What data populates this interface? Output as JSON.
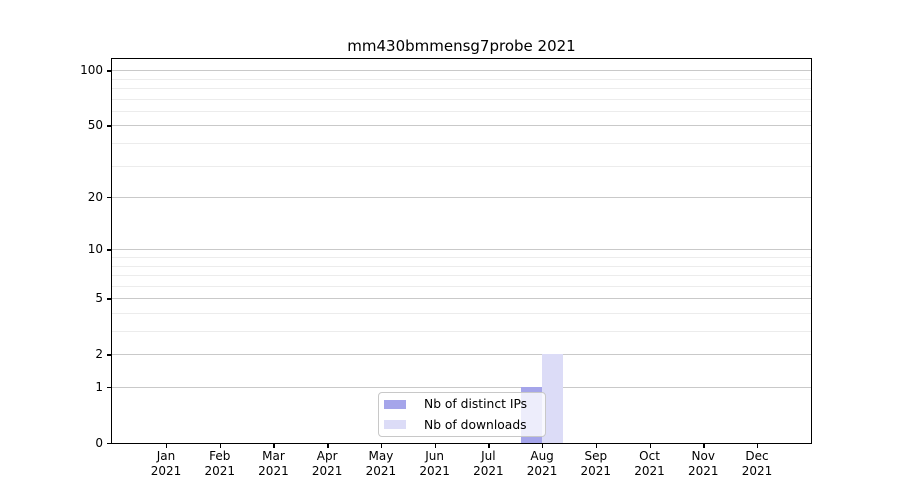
{
  "chart_data": {
    "type": "bar",
    "title": "mm430bmmensg7probe 2021",
    "categories": [
      "Jan 2021",
      "Feb 2021",
      "Mar 2021",
      "Apr 2021",
      "May 2021",
      "Jun 2021",
      "Jul 2021",
      "Aug 2021",
      "Sep 2021",
      "Oct 2021",
      "Nov 2021",
      "Dec 2021"
    ],
    "x_tick_month_labels": [
      "Jan",
      "Feb",
      "Mar",
      "Apr",
      "May",
      "Jun",
      "Jul",
      "Aug",
      "Sep",
      "Oct",
      "Nov",
      "Dec"
    ],
    "x_tick_year_label": "2021",
    "series": [
      {
        "name": "Nb of distinct IPs",
        "color": "#a5a5ea",
        "values": [
          0,
          0,
          0,
          0,
          0,
          0,
          0,
          1,
          0,
          0,
          0,
          0
        ]
      },
      {
        "name": "Nb of downloads",
        "color": "#dcdcf7",
        "values": [
          0,
          0,
          0,
          0,
          0,
          0,
          0,
          2,
          0,
          0,
          0,
          0
        ]
      }
    ],
    "y_axis": {
      "scale": "log10(1+y)",
      "tick_values": [
        0,
        1,
        2,
        5,
        10,
        20,
        50,
        100
      ],
      "tick_labels": [
        "0",
        "1",
        "2",
        "5",
        "10",
        "20",
        "50",
        "100"
      ],
      "minor_gridline_values": [
        3,
        4,
        6,
        7,
        8,
        9,
        30,
        40,
        60,
        70,
        80,
        90
      ],
      "ylim": [
        0,
        115
      ]
    },
    "legend": {
      "position": "lower center inside plot",
      "entries": [
        "Nb of distinct IPs",
        "Nb of downloads"
      ]
    },
    "grid": "horizontal",
    "colors": {
      "major_grid": "#c9c9c9",
      "minor_grid": "#ececec",
      "spine": "#000000",
      "text": "#000000",
      "legend_border": "#c8c8c8",
      "legend_bg": "rgba(255,255,255,0.8)"
    }
  }
}
